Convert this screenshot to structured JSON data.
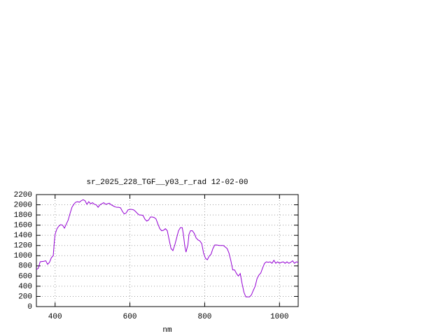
{
  "chart_data": {
    "type": "line",
    "title": "sr_2025_228_TGF__y03_r_rad 12-02-00",
    "xlabel": "nm",
    "x": [
      350,
      355,
      360,
      370,
      375,
      380,
      385,
      390,
      395,
      398,
      400,
      405,
      410,
      415,
      420,
      425,
      430,
      435,
      440,
      445,
      450,
      455,
      460,
      465,
      470,
      475,
      480,
      485,
      490,
      495,
      500,
      505,
      510,
      515,
      520,
      525,
      530,
      535,
      540,
      545,
      550,
      555,
      560,
      565,
      570,
      575,
      580,
      585,
      590,
      595,
      600,
      605,
      610,
      615,
      620,
      625,
      630,
      635,
      640,
      645,
      650,
      655,
      660,
      665,
      670,
      675,
      680,
      685,
      690,
      695,
      700,
      705,
      710,
      715,
      720,
      725,
      730,
      735,
      740,
      743,
      747,
      750,
      755,
      758,
      762,
      767,
      772,
      777,
      782,
      787,
      792,
      797,
      802,
      807,
      812,
      817,
      822,
      827,
      832,
      840,
      850,
      855,
      860,
      865,
      870,
      875,
      880,
      885,
      890,
      895,
      900,
      905,
      910,
      915,
      920,
      925,
      930,
      935,
      940,
      945,
      950,
      955,
      960,
      965,
      970,
      975,
      980,
      985,
      990,
      995,
      1000,
      1005,
      1010,
      1015,
      1020,
      1025,
      1030,
      1035,
      1040,
      1045,
      1050
    ],
    "series": [
      {
        "color": "#9400d3",
        "values": [
          730,
          750,
          880,
          890,
          900,
          830,
          870,
          960,
          1000,
          1280,
          1420,
          1530,
          1580,
          1610,
          1600,
          1540,
          1620,
          1700,
          1830,
          1950,
          2010,
          2050,
          2060,
          2050,
          2080,
          2100,
          2080,
          2010,
          2060,
          2020,
          2040,
          2010,
          2000,
          1950,
          2000,
          2020,
          2040,
          2010,
          2020,
          2030,
          2000,
          1980,
          1960,
          1950,
          1950,
          1940,
          1870,
          1820,
          1840,
          1900,
          1910,
          1910,
          1900,
          1870,
          1830,
          1800,
          1800,
          1790,
          1720,
          1680,
          1700,
          1760,
          1760,
          1750,
          1720,
          1620,
          1530,
          1490,
          1500,
          1530,
          1490,
          1310,
          1140,
          1100,
          1210,
          1350,
          1490,
          1550,
          1550,
          1420,
          1180,
          1070,
          1210,
          1420,
          1490,
          1490,
          1440,
          1350,
          1310,
          1290,
          1240,
          1050,
          950,
          920,
          990,
          1030,
          1140,
          1210,
          1210,
          1200,
          1200,
          1170,
          1140,
          1050,
          900,
          720,
          720,
          650,
          600,
          650,
          450,
          280,
          190,
          190,
          190,
          230,
          320,
          400,
          550,
          620,
          660,
          760,
          850,
          880,
          870,
          880,
          850,
          910,
          850,
          880,
          850,
          870,
          880,
          850,
          880,
          850,
          870,
          900,
          850,
          880,
          870
        ]
      }
    ],
    "xlim": [
      350,
      1050
    ],
    "ylim": [
      0,
      2200
    ],
    "xticks": [
      400,
      600,
      800,
      1000
    ],
    "yticks": [
      0,
      200,
      400,
      600,
      800,
      1000,
      1200,
      1400,
      1600,
      1800,
      2000,
      2200
    ],
    "grid": true
  }
}
